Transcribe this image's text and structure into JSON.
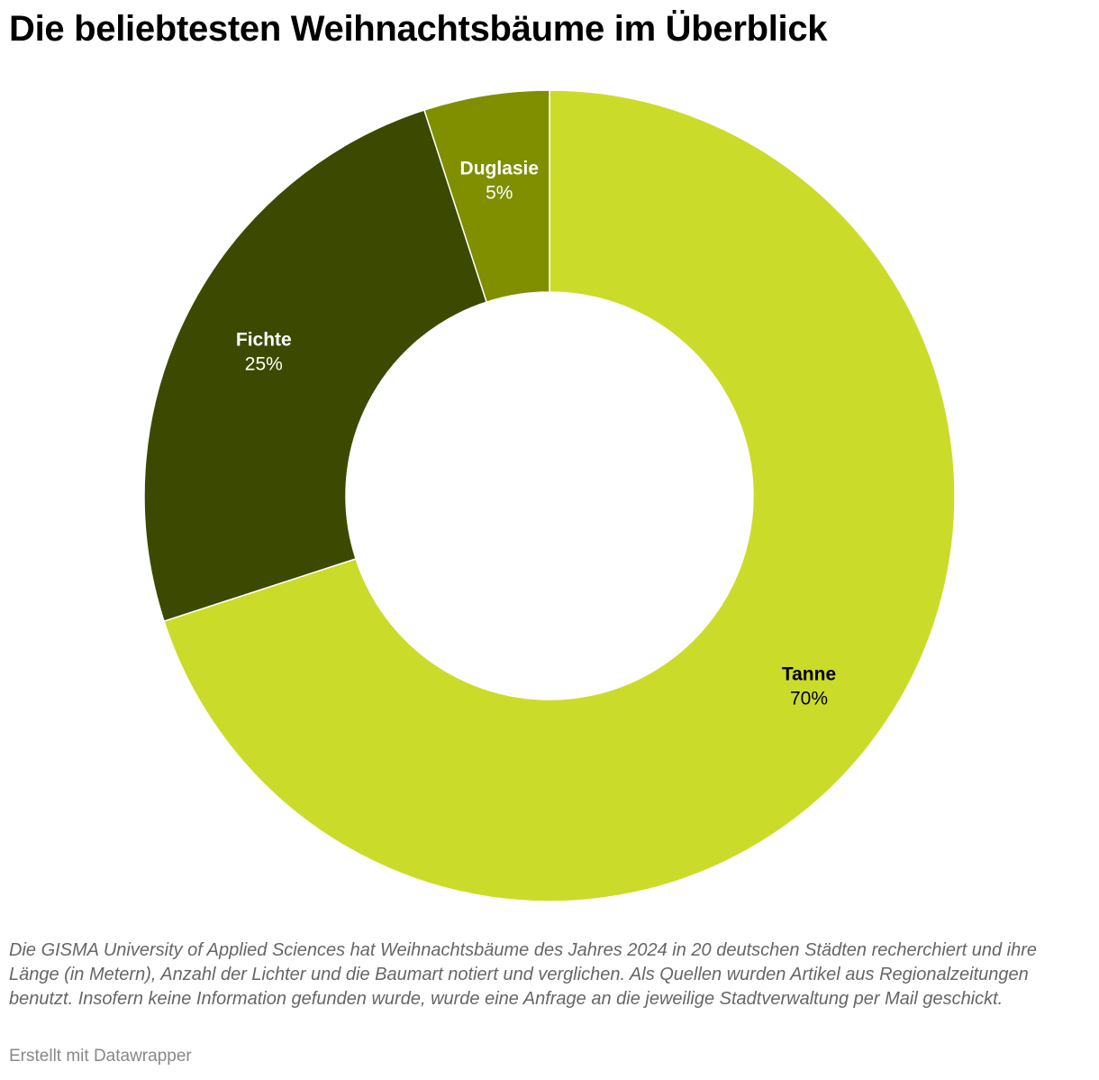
{
  "title": "Die beliebtesten Weihnachtsbäume im Überblick",
  "notes": "Die GISMA University of Applied Sciences hat Weihnachtsbäume des Jahres 2024 in 20 deutschen Städten recherchiert und ihre Länge (in Metern), Anzahl der Lichter und die Baumart notiert und verglichen. Als Quellen wurden Artikel aus Regionalzeitungen benutzt. Insofern keine Information gefunden wurde, wurde eine Anfrage an die jeweilige Stadtverwaltung per Mail geschickt.",
  "credit": "Erstellt mit Datawrapper",
  "chart_data": {
    "type": "pie",
    "variant": "donut",
    "start": "top",
    "direction": "clockwise",
    "slices": [
      {
        "label": "Tanne",
        "value": 70,
        "value_label": "70%",
        "color": "#cbdb2a",
        "label_color": "#000000"
      },
      {
        "label": "Fichte",
        "value": 25,
        "value_label": "25%",
        "color": "#3b4a00",
        "label_color": "#ffffff"
      },
      {
        "label": "Duglasie",
        "value": 5,
        "value_label": "5%",
        "color": "#7f8f00",
        "label_color": "#ffffff"
      }
    ]
  }
}
